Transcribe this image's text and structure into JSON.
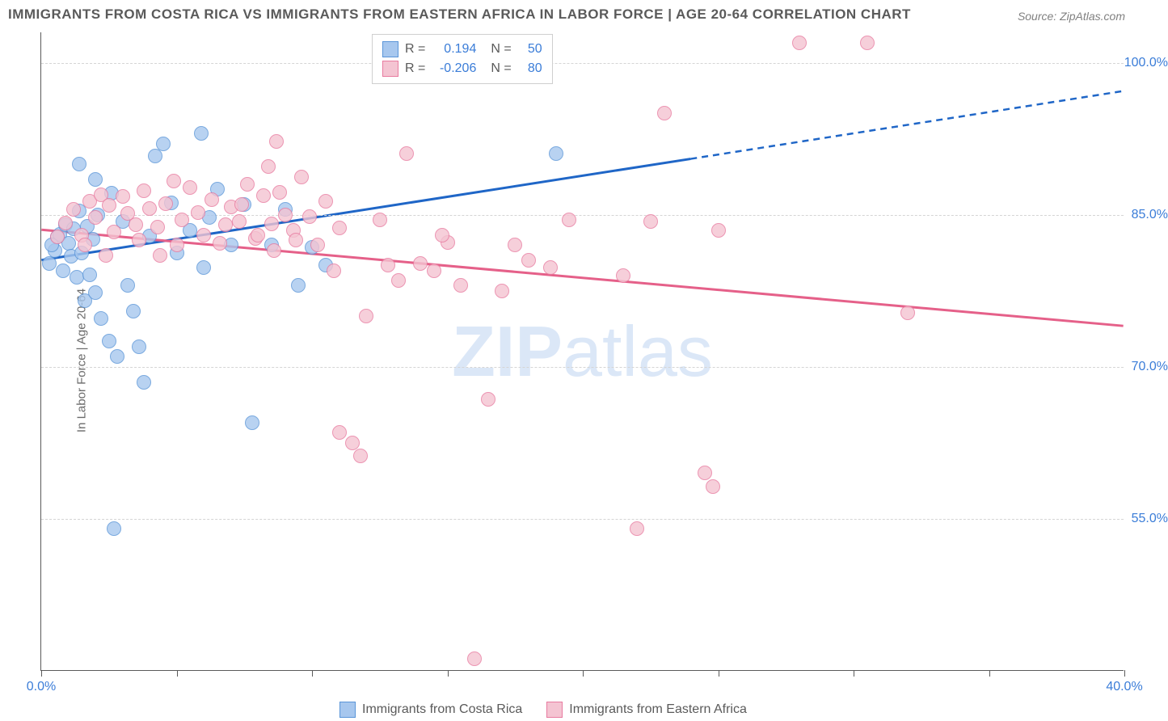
{
  "title": "IMMIGRANTS FROM COSTA RICA VS IMMIGRANTS FROM EASTERN AFRICA IN LABOR FORCE | AGE 20-64 CORRELATION CHART",
  "source": "Source: ZipAtlas.com",
  "ylabel": "In Labor Force | Age 20-64",
  "watermark_a": "ZIP",
  "watermark_b": "atlas",
  "chart": {
    "type": "scatter",
    "background_color": "#ffffff",
    "grid_color": "#d5d5d5",
    "axis_color": "#5a5a5a",
    "tick_label_color": "#3b7dd8",
    "tick_fontsize": 16,
    "title_fontsize": 17,
    "title_color": "#5a5a5a",
    "xlim": [
      0,
      40
    ],
    "ylim": [
      40,
      103
    ],
    "xticks": [
      0,
      5,
      10,
      15,
      20,
      25,
      30,
      35,
      40
    ],
    "xtick_labels": [
      "0.0%",
      "",
      "",
      "",
      "",
      "",
      "",
      "",
      "40.0%"
    ],
    "yticks": [
      55,
      70,
      85,
      100
    ],
    "ytick_labels": [
      "55.0%",
      "70.0%",
      "85.0%",
      "100.0%"
    ],
    "marker_radius": 9,
    "marker_fill_opacity": 0.35,
    "marker_stroke_width": 1.5,
    "trend_line_width": 3,
    "series": [
      {
        "name": "Immigrants from Costa Rica",
        "color_fill": "#a7c7ee",
        "color_stroke": "#5a95d8",
        "color_line": "#1f66c7",
        "R": "0.194",
        "N": "50",
        "trend": {
          "x1": 0,
          "y1": 80.5,
          "x2": 24,
          "y2": 90.5,
          "x2_dash": 40,
          "y2_dash": 97.2
        },
        "points": [
          [
            0.3,
            80.2
          ],
          [
            0.5,
            81.5
          ],
          [
            0.6,
            82.8
          ],
          [
            0.7,
            83.1
          ],
          [
            0.8,
            79.5
          ],
          [
            0.9,
            84.0
          ],
          [
            1.0,
            82.2
          ],
          [
            1.1,
            80.9
          ],
          [
            1.2,
            83.6
          ],
          [
            1.3,
            78.8
          ],
          [
            1.4,
            85.4
          ],
          [
            1.5,
            81.2
          ],
          [
            1.6,
            76.5
          ],
          [
            1.7,
            83.9
          ],
          [
            1.8,
            79.1
          ],
          [
            1.9,
            82.6
          ],
          [
            2.0,
            77.3
          ],
          [
            2.1,
            85.0
          ],
          [
            2.2,
            74.8
          ],
          [
            2.5,
            72.5
          ],
          [
            2.6,
            87.1
          ],
          [
            2.8,
            71.0
          ],
          [
            3.0,
            84.3
          ],
          [
            3.2,
            78.0
          ],
          [
            3.4,
            75.5
          ],
          [
            3.6,
            72.0
          ],
          [
            3.8,
            68.5
          ],
          [
            4.0,
            82.9
          ],
          [
            4.2,
            90.8
          ],
          [
            4.5,
            92.0
          ],
          [
            4.8,
            86.2
          ],
          [
            5.0,
            81.2
          ],
          [
            5.9,
            93.0
          ],
          [
            5.5,
            83.5
          ],
          [
            6.0,
            79.8
          ],
          [
            6.2,
            84.7
          ],
          [
            6.5,
            87.5
          ],
          [
            7.0,
            82.0
          ],
          [
            7.5,
            86.0
          ],
          [
            7.8,
            64.5
          ],
          [
            8.5,
            82.0
          ],
          [
            9.0,
            85.5
          ],
          [
            9.5,
            78.0
          ],
          [
            10.0,
            81.8
          ],
          [
            10.5,
            80.0
          ],
          [
            19.0,
            91.0
          ],
          [
            2.7,
            54.0
          ],
          [
            2.0,
            88.5
          ],
          [
            1.4,
            90.0
          ],
          [
            0.4,
            82.0
          ]
        ]
      },
      {
        "name": "Immigrants from Eastern Africa",
        "color_fill": "#f4c4d2",
        "color_stroke": "#e87ba0",
        "color_line": "#e56089",
        "R": "-0.206",
        "N": "80",
        "trend": {
          "x1": 0,
          "y1": 83.5,
          "x2": 40,
          "y2": 74.0,
          "x2_dash": 40,
          "y2_dash": 74.0
        },
        "points": [
          [
            0.6,
            82.8
          ],
          [
            0.9,
            84.2
          ],
          [
            1.2,
            85.5
          ],
          [
            1.5,
            83.0
          ],
          [
            1.8,
            86.3
          ],
          [
            2.0,
            84.7
          ],
          [
            2.2,
            87.0
          ],
          [
            2.5,
            85.9
          ],
          [
            2.7,
            83.3
          ],
          [
            3.0,
            86.8
          ],
          [
            3.2,
            85.1
          ],
          [
            3.5,
            84.0
          ],
          [
            3.8,
            87.4
          ],
          [
            4.0,
            85.6
          ],
          [
            4.3,
            83.8
          ],
          [
            4.6,
            86.1
          ],
          [
            4.9,
            88.3
          ],
          [
            5.2,
            84.5
          ],
          [
            5.5,
            87.7
          ],
          [
            5.8,
            85.2
          ],
          [
            6.0,
            83.0
          ],
          [
            6.3,
            86.5
          ],
          [
            6.6,
            82.2
          ],
          [
            7.0,
            85.8
          ],
          [
            7.3,
            84.3
          ],
          [
            7.6,
            88.0
          ],
          [
            7.9,
            82.7
          ],
          [
            8.2,
            86.9
          ],
          [
            8.4,
            89.8
          ],
          [
            8.5,
            84.1
          ],
          [
            8.7,
            92.2
          ],
          [
            8.8,
            87.2
          ],
          [
            9.0,
            85.0
          ],
          [
            9.3,
            83.5
          ],
          [
            9.6,
            88.7
          ],
          [
            9.9,
            84.8
          ],
          [
            10.2,
            82.0
          ],
          [
            10.5,
            86.3
          ],
          [
            10.8,
            79.5
          ],
          [
            11.0,
            83.7
          ],
          [
            11.5,
            62.5
          ],
          [
            11.8,
            61.2
          ],
          [
            11.0,
            63.5
          ],
          [
            12.0,
            75.0
          ],
          [
            12.5,
            84.5
          ],
          [
            13.5,
            91.0
          ],
          [
            14.0,
            80.2
          ],
          [
            14.5,
            79.5
          ],
          [
            15.0,
            82.3
          ],
          [
            15.5,
            78.0
          ],
          [
            16.5,
            66.8
          ],
          [
            17.0,
            77.5
          ],
          [
            17.5,
            82.0
          ],
          [
            18.0,
            80.5
          ],
          [
            18.8,
            79.8
          ],
          [
            19.5,
            84.5
          ],
          [
            21.5,
            79.0
          ],
          [
            22.5,
            84.3
          ],
          [
            22.0,
            54.0
          ],
          [
            23.0,
            95.0
          ],
          [
            24.5,
            59.5
          ],
          [
            24.8,
            58.2
          ],
          [
            25.0,
            83.5
          ],
          [
            28.0,
            102.0
          ],
          [
            30.5,
            102.0
          ],
          [
            32.0,
            75.3
          ],
          [
            16.0,
            41.2
          ],
          [
            12.8,
            80.0
          ],
          [
            13.2,
            78.5
          ],
          [
            14.8,
            83.0
          ],
          [
            6.8,
            84.0
          ],
          [
            7.4,
            86.0
          ],
          [
            8.0,
            83.0
          ],
          [
            8.6,
            81.5
          ],
          [
            9.4,
            82.5
          ],
          [
            5.0,
            82.0
          ],
          [
            4.4,
            81.0
          ],
          [
            3.6,
            82.5
          ],
          [
            2.4,
            81.0
          ],
          [
            1.6,
            82.0
          ]
        ]
      }
    ]
  },
  "stats_legend": {
    "r_label": "R =",
    "n_label": "N ="
  },
  "bottom_legend_items": [
    "Immigrants from Costa Rica",
    "Immigrants from Eastern Africa"
  ]
}
